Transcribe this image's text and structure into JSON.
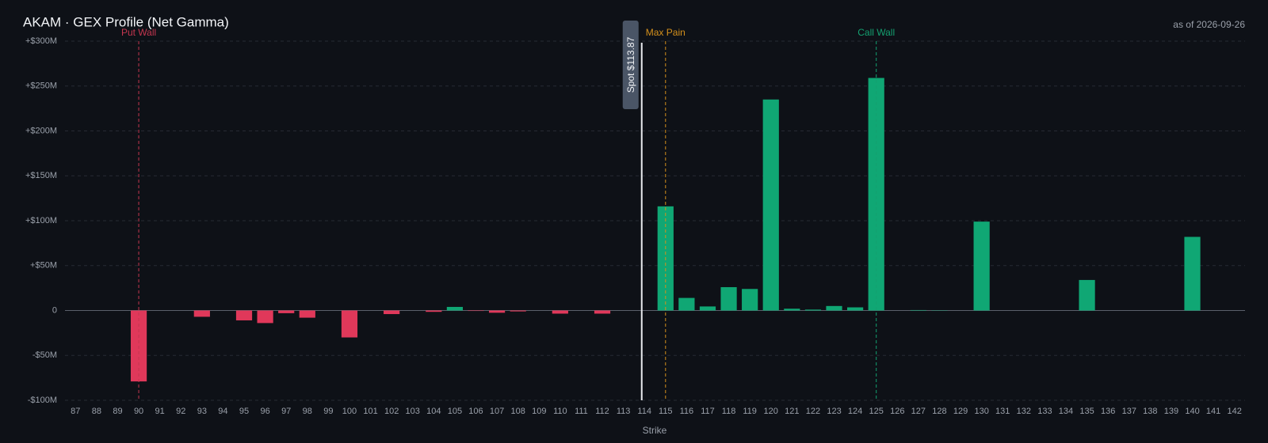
{
  "chart_data": {
    "type": "bar",
    "title": "AKAM · GEX Profile (Net Gamma)",
    "subtitle": "as of 2026-09-26",
    "x_label": "Strike",
    "x": [
      87,
      88,
      89,
      90,
      91,
      92,
      93,
      94,
      95,
      96,
      97,
      98,
      99,
      100,
      101,
      102,
      103,
      104,
      105,
      106,
      107,
      108,
      109,
      110,
      111,
      112,
      113,
      114,
      115,
      116,
      117,
      118,
      119,
      120,
      121,
      122,
      123,
      124,
      125,
      126,
      127,
      128,
      129,
      130,
      131,
      132,
      133,
      134,
      135,
      136,
      137,
      138,
      139,
      140,
      141,
      142
    ],
    "values": [
      0,
      0,
      0,
      -79,
      0,
      0,
      -7,
      0,
      -11,
      -14,
      -3,
      -8,
      0,
      -30,
      0,
      -4,
      0,
      -1.5,
      4,
      -0.5,
      -2.5,
      -1,
      0,
      -3.5,
      0,
      -3.5,
      0,
      0,
      116,
      14,
      4.5,
      26,
      24,
      235,
      2,
      1,
      5,
      3.5,
      259,
      0,
      0.5,
      0.3,
      0,
      99,
      0,
      0,
      0,
      0,
      34,
      0,
      0,
      0,
      0,
      82,
      0,
      0
    ],
    "colors": {
      "positive": "#10a774",
      "negative": "#e0385a"
    },
    "ylim": [
      -100,
      300
    ],
    "yticks": [
      {
        "value": -100,
        "label": "-$100M"
      },
      {
        "value": -50,
        "label": "-$50M"
      },
      0,
      {
        "value": 50,
        "label": "+$50M"
      },
      {
        "value": 100,
        "label": "+$100M"
      },
      {
        "value": 150,
        "label": "+$150M"
      },
      {
        "value": 200,
        "label": "+$200M"
      },
      {
        "value": 250,
        "label": "+$250M"
      },
      {
        "value": 300,
        "label": "+$300M"
      }
    ],
    "grid": true,
    "markers": [
      {
        "label": "Put Wall",
        "x": 90,
        "color": "#c4364f"
      },
      {
        "label": "Max Pain",
        "x": 115,
        "color": "#d4901c"
      },
      {
        "label": "Call Wall",
        "x": 125,
        "color": "#14a070"
      }
    ],
    "spot": {
      "label": "Spot $113.87",
      "x": 113.87,
      "color": "#e8eaee"
    }
  }
}
